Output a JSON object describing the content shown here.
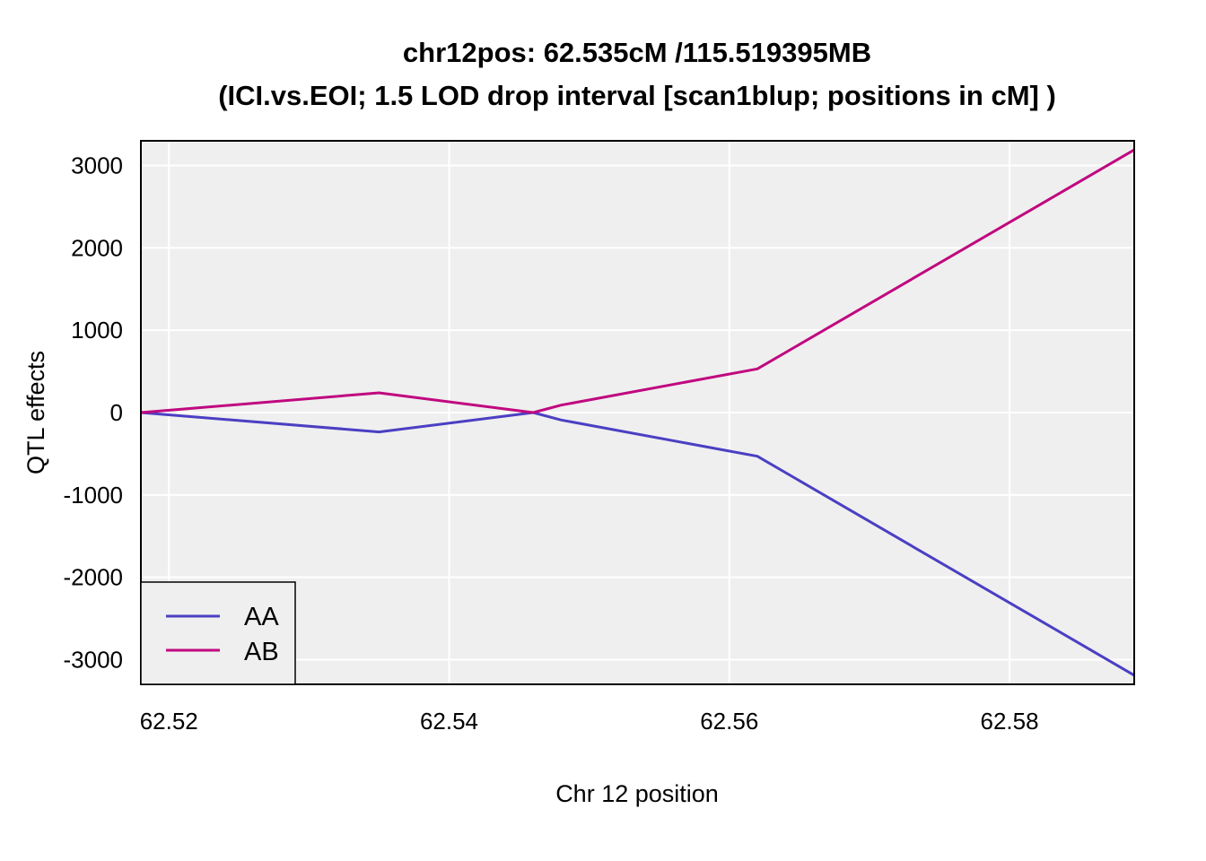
{
  "chart_data": {
    "type": "line",
    "title_line1": "chr12pos: 62.535cM /115.519395MB",
    "title_line2": "(ICI.vs.EOI; 1.5 LOD drop interval [scan1blup; positions in cM] )",
    "xlabel": "Chr 12 position",
    "ylabel": "QTL effects",
    "xlim": [
      62.518,
      62.5889
    ],
    "ylim": [
      -3300,
      3300
    ],
    "x_ticks": [
      {
        "value": 62.52,
        "label": "62.52"
      },
      {
        "value": 62.54,
        "label": "62.54"
      },
      {
        "value": 62.56,
        "label": "62.56"
      },
      {
        "value": 62.58,
        "label": "62.58"
      }
    ],
    "y_ticks": [
      {
        "value": 3000,
        "label": "3000"
      },
      {
        "value": 2000,
        "label": "2000"
      },
      {
        "value": 1000,
        "label": "1000"
      },
      {
        "value": 0,
        "label": "0"
      },
      {
        "value": -1000,
        "label": "-1000"
      },
      {
        "value": -2000,
        "label": "-2000"
      },
      {
        "value": -3000,
        "label": "-3000"
      }
    ],
    "grid": true,
    "background_color": "#efefef",
    "grid_color": "#ffffff",
    "legend_position": "bottom-left",
    "x": [
      62.518,
      62.535,
      62.546,
      62.548,
      62.562,
      62.5889
    ],
    "series": [
      {
        "name": "AA",
        "color": "#4b3fc3",
        "values": [
          0,
          -235,
          0,
          -90,
          -530,
          -3190
        ]
      },
      {
        "name": "AB",
        "color": "#c0087f",
        "values": [
          0,
          240,
          0,
          90,
          530,
          3190
        ]
      }
    ]
  }
}
